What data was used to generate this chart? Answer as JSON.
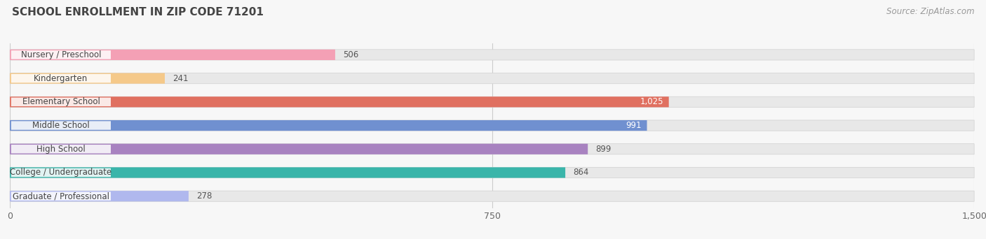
{
  "title": "SCHOOL ENROLLMENT IN ZIP CODE 71201",
  "source": "Source: ZipAtlas.com",
  "categories": [
    "Nursery / Preschool",
    "Kindergarten",
    "Elementary School",
    "Middle School",
    "High School",
    "College / Undergraduate",
    "Graduate / Professional"
  ],
  "values": [
    506,
    241,
    1025,
    991,
    899,
    864,
    278
  ],
  "bar_colors": [
    "#f4a0b5",
    "#f5c98a",
    "#e07060",
    "#7090d0",
    "#a882c0",
    "#3ab5aa",
    "#b0b8ee"
  ],
  "label_colors": [
    "#555555",
    "#555555",
    "#ffffff",
    "#ffffff",
    "#555555",
    "#555555",
    "#555555"
  ],
  "xlim": [
    0,
    1500
  ],
  "xticks": [
    0,
    750,
    1500
  ],
  "xtick_labels": [
    "0",
    "750",
    "1,500"
  ],
  "bg_color": "#f7f7f7",
  "bar_bg_color": "#e8e8e8",
  "title_fontsize": 11,
  "source_fontsize": 8.5,
  "label_fontsize": 8.5,
  "value_fontsize": 8.5,
  "figsize": [
    14.06,
    3.42
  ],
  "dpi": 100
}
